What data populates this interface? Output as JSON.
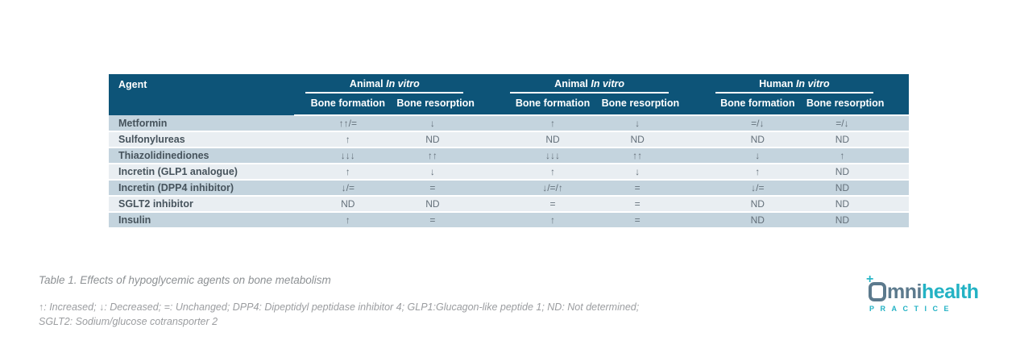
{
  "table": {
    "caption": "Table 1. Effects of hypoglycemic agents on bone metabolism",
    "agent_header": "Agent",
    "groups": [
      {
        "name": "Animal",
        "qualifier": "In vitro"
      },
      {
        "name": "Animal",
        "qualifier": "In vitro"
      },
      {
        "name": "Human",
        "qualifier": "In vitro"
      }
    ],
    "subheaders": {
      "formation": "Bone formation",
      "resorption": "Bone resorption"
    },
    "rows": [
      {
        "agent": "Metformin",
        "values": [
          "↑↑/=",
          "↓",
          "↑",
          "↓",
          "=/↓",
          "=/↓"
        ]
      },
      {
        "agent": "Sulfonylureas",
        "values": [
          "↑",
          "ND",
          "ND",
          "ND",
          "ND",
          "ND"
        ]
      },
      {
        "agent": "Thiazolidinediones",
        "values": [
          "↓↓↓",
          "↑↑",
          "↓↓↓",
          "↑↑",
          "↓",
          "↑"
        ]
      },
      {
        "agent": "Incretin (GLP1 analogue)",
        "values": [
          "↑",
          "↓",
          "↑",
          "↓",
          "↑",
          "ND"
        ]
      },
      {
        "agent": "Incretin (DPP4 inhibitor)",
        "values": [
          "↓/=",
          "=",
          "↓/=/↑",
          "=",
          "↓/=",
          "ND"
        ]
      },
      {
        "agent": "SGLT2 inhibitor",
        "values": [
          "ND",
          "ND",
          "=",
          "=",
          "ND",
          "ND"
        ]
      },
      {
        "agent": "Insulin",
        "values": [
          "↑",
          "=",
          "↑",
          "=",
          "ND",
          "ND"
        ]
      }
    ]
  },
  "footnote": {
    "line1": "↑: Increased; ↓: Decreased; =: Unchanged; DPP4: Dipeptidyl peptidase inhibitor 4; GLP1:Glucagon-like peptide 1; ND: Not determined;",
    "line2": "SGLT2: Sodium/glucose cotransporter 2"
  },
  "logo": {
    "plus": "+",
    "mni": "mni",
    "health": "health",
    "practice": "PRACTICE"
  },
  "colors": {
    "header_blue": "#0d5478",
    "row_dark": "#c4d4de",
    "row_light": "#e9eef2",
    "brand_teal": "#23b2c4",
    "brand_slate": "#5c7a8d"
  }
}
